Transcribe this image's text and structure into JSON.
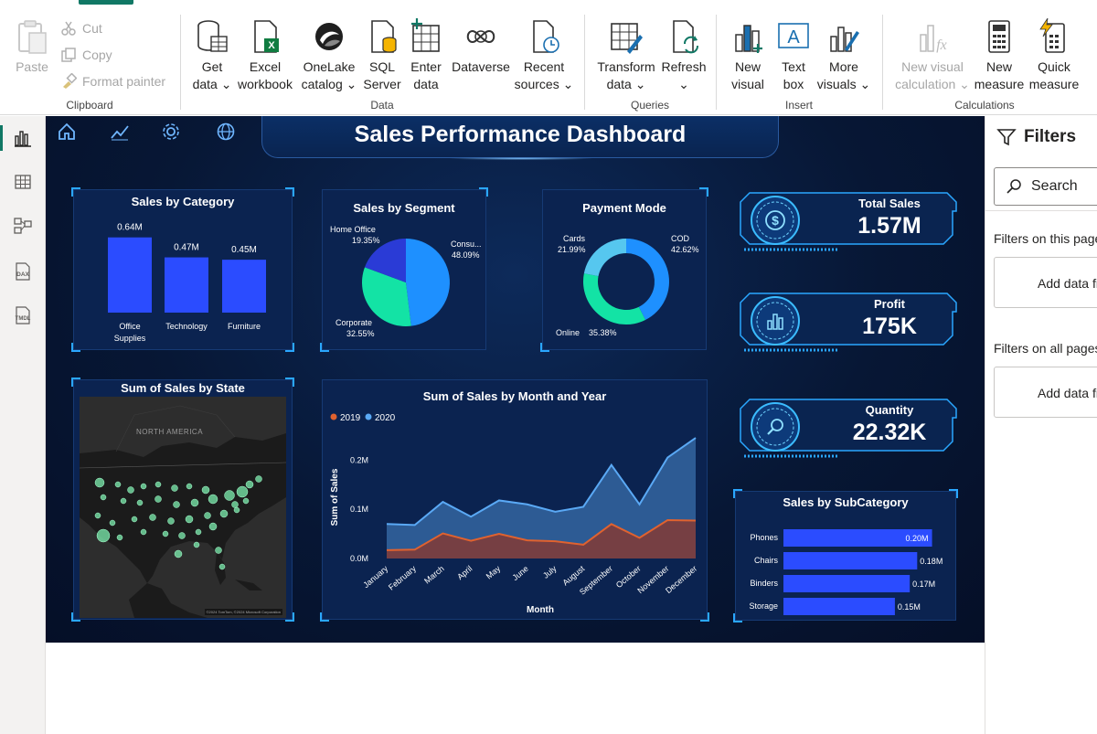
{
  "ribbon": {
    "clipboard": {
      "label": "Clipboard",
      "paste": "Paste",
      "cut": "Cut",
      "copy": "Copy",
      "format_painter": "Format painter"
    },
    "data": {
      "label": "Data",
      "get_data": [
        "Get",
        "data ⌄"
      ],
      "excel": [
        "Excel",
        "workbook"
      ],
      "onelake": [
        "OneLake",
        "catalog ⌄"
      ],
      "sql": [
        "SQL",
        "Server"
      ],
      "enter": [
        "Enter",
        "data"
      ],
      "dataverse": [
        "Dataverse",
        ""
      ],
      "recent": [
        "Recent",
        "sources ⌄"
      ]
    },
    "queries": {
      "label": "Queries",
      "transform": [
        "Transform",
        "data ⌄"
      ],
      "refresh": [
        "Refresh",
        "⌄"
      ]
    },
    "insert": {
      "label": "Insert",
      "new_visual": [
        "New",
        "visual"
      ],
      "text_box": [
        "Text",
        "box"
      ],
      "more_visuals": [
        "More",
        "visuals ⌄"
      ]
    },
    "calculations": {
      "label": "Calculations",
      "new_visual_calc": [
        "New visual",
        "calculation ⌄"
      ],
      "new_measure": [
        "New",
        "measure"
      ],
      "quick_measure": [
        "Quick",
        "measure"
      ]
    }
  },
  "dashboard": {
    "title": "Sales Performance Dashboard",
    "accent": "#2b4cff",
    "kpis": [
      {
        "label": "Total Sales",
        "value": "1.57M",
        "icon": "dollar-icon"
      },
      {
        "label": "Profit",
        "value": "175K",
        "icon": "bar-chart-icon"
      },
      {
        "label": "Quantity",
        "value": "22.32K",
        "icon": "magnifier-icon"
      }
    ],
    "map": {
      "title": "Sum of Sales by State",
      "region_label": "NORTH AMERICA",
      "attribution": "©2024 TomTom, ©2024 Microsoft Corporation"
    }
  },
  "chart_data": [
    {
      "id": "category",
      "type": "bar",
      "title": "Sales by Category",
      "categories": [
        "Office Supplies",
        "Technology",
        "Furniture"
      ],
      "category_lines": [
        [
          "Office",
          "Supplies"
        ],
        [
          "Technology"
        ],
        [
          "Furniture"
        ]
      ],
      "values": [
        0.64,
        0.47,
        0.45
      ],
      "labels": [
        "0.64M",
        "0.47M",
        "0.45M"
      ],
      "color": "#2b4cff"
    },
    {
      "id": "segment",
      "type": "pie",
      "title": "Sales by Segment",
      "slices": [
        {
          "name": "Consu...",
          "value": 48.09,
          "label": "48.09%",
          "color": "#1e90ff"
        },
        {
          "name": "Corporate",
          "value": 32.55,
          "label": "32.55%",
          "color": "#13e3a5"
        },
        {
          "name": "Home Office",
          "value": 19.35,
          "label": "19.35%",
          "color": "#2a3bd6"
        }
      ]
    },
    {
      "id": "payment",
      "type": "pie",
      "title": "Payment Mode",
      "donut": true,
      "slices": [
        {
          "name": "COD",
          "value": 42.62,
          "label": "42.62%",
          "color": "#1e90ff"
        },
        {
          "name": "Online",
          "value": 35.38,
          "label": "35.38%",
          "color": "#13e3a5"
        },
        {
          "name": "Cards",
          "value": 21.99,
          "label": "21.99%",
          "color": "#56c7ef"
        }
      ]
    },
    {
      "id": "monthly",
      "type": "area",
      "title": "Sum of Sales by Month and Year",
      "xlabel": "Month",
      "ylabel": "Sum of Sales",
      "categories": [
        "January",
        "February",
        "March",
        "April",
        "May",
        "June",
        "July",
        "August",
        "September",
        "October",
        "November",
        "December"
      ],
      "y_ticks": [
        "0.0M",
        "0.1M",
        "0.2M"
      ],
      "ylim": [
        0,
        0.26
      ],
      "series": [
        {
          "name": "2020",
          "color": "#5aa9f5",
          "values": [
            0.07,
            0.068,
            0.115,
            0.085,
            0.118,
            0.11,
            0.095,
            0.105,
            0.19,
            0.11,
            0.205,
            0.245
          ]
        },
        {
          "name": "2019",
          "color": "#e0622f",
          "values": [
            0.017,
            0.018,
            0.051,
            0.036,
            0.05,
            0.037,
            0.035,
            0.028,
            0.07,
            0.042,
            0.078,
            0.077
          ]
        }
      ]
    },
    {
      "id": "subcategory",
      "type": "bar",
      "orientation": "horizontal",
      "title": "Sales by SubCategory",
      "categories": [
        "Phones",
        "Chairs",
        "Binders",
        "Storage"
      ],
      "values": [
        0.2,
        0.18,
        0.17,
        0.15
      ],
      "labels": [
        "0.20M",
        "0.18M",
        "0.17M",
        "0.15M"
      ],
      "color": "#2b4cff"
    }
  ],
  "filters": {
    "title": "Filters",
    "search_placeholder": "Search",
    "on_this_page": "Filters on this page",
    "on_all_pages": "Filters on all pages",
    "add_data": "Add data fields here"
  }
}
